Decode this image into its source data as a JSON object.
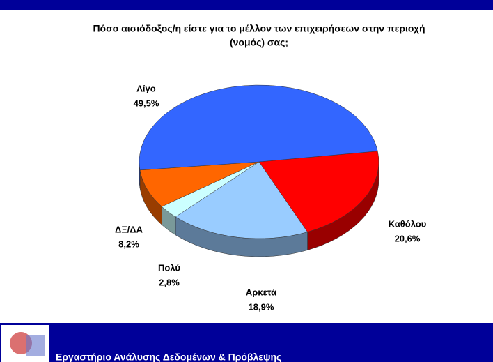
{
  "chart_data": {
    "type": "pie",
    "title": [
      "Πόσο αισιόδοξος/η είστε για το μέλλον των επιχειρήσεων στην περιοχή",
      "(νομός)  σας;"
    ],
    "categories": [
      "Καθόλου",
      "Αρκετά",
      "Πολύ",
      "ΔΞ/ΔΑ",
      "Λίγο"
    ],
    "values": [
      20.6,
      18.9,
      2.8,
      8.2,
      49.5
    ],
    "value_labels": [
      "20,6%",
      "18,9%",
      "2,8%",
      "8,2%",
      "49,5%"
    ],
    "colors": [
      "#ff0000",
      "#99ccff",
      "#ccffff",
      "#ff6600",
      "#3366ff"
    ]
  },
  "footer": "Εργαστήριο Ανάλυσης Δεδομένων & Πρόβλεψης"
}
